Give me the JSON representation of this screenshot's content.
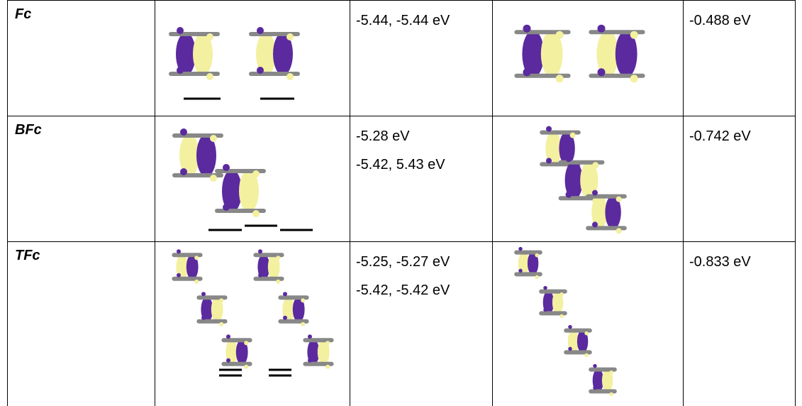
{
  "table": {
    "rows": [
      {
        "label": "Fc",
        "homo_energies": [
          "-5.44, -5.44 eV"
        ],
        "lumo_energy": "-0.488 eV"
      },
      {
        "label": "BFc",
        "homo_energies": [
          "-5.28 eV",
          "-5.42, 5.43 eV"
        ],
        "lumo_energy": "-0.742 eV"
      },
      {
        "label": "TFc",
        "homo_energies": [
          "-5.25, -5.27 eV",
          "-5.42, -5.42 eV"
        ],
        "lumo_energy": "-0.833 eV"
      }
    ]
  }
}
